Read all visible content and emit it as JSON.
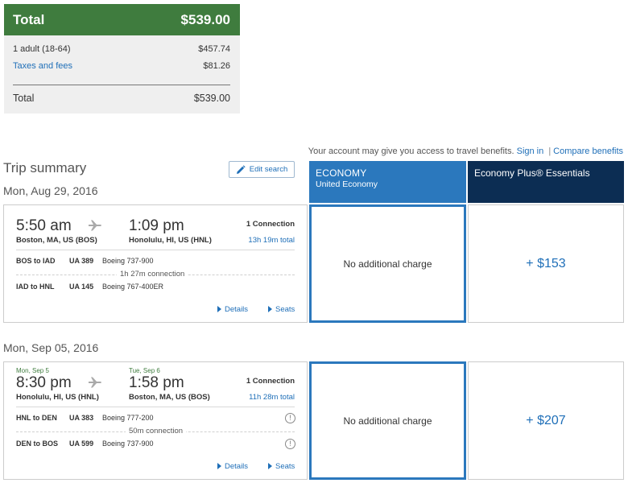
{
  "price_summary": {
    "header_label": "Total",
    "header_amount": "$539.00",
    "rows": [
      {
        "label": "1 adult (18-64)",
        "amount": "$457.74"
      },
      {
        "label": "Taxes and fees",
        "amount": "$81.26"
      }
    ],
    "total_label": "Total",
    "total_amount": "$539.00"
  },
  "benefits_bar": {
    "text": "Your account may give you access to travel benefits.",
    "sign_in": "Sign in",
    "separator": "|",
    "compare": "Compare benefits"
  },
  "trip_summary": {
    "title": "Trip summary",
    "edit_label": "Edit search"
  },
  "columns": {
    "economy_title": "ECONOMY",
    "economy_sub": "United Economy",
    "plus_title": "Economy Plus® Essentials"
  },
  "flights": [
    {
      "date": "Mon, Aug 29, 2016",
      "dep_day": "",
      "arr_day": "",
      "dep_time": "5:50 am",
      "arr_time": "1:09 pm",
      "dep_city": "Boston, MA, US (BOS)",
      "arr_city": "Honolulu, HI, US (HNL)",
      "connections": "1 Connection",
      "total": "13h 19m total",
      "segments": [
        {
          "route": "BOS to IAD",
          "flight": "UA 389",
          "aircraft": "Boeing 737-900"
        },
        {
          "route": "IAD to HNL",
          "flight": "UA 145",
          "aircraft": "Boeing 767-400ER"
        }
      ],
      "layover": "1h 27m connection",
      "details": "Details",
      "seats": "Seats",
      "economy": "No additional charge",
      "plus": "+ $153"
    },
    {
      "date": "Mon, Sep 05, 2016",
      "dep_day": "Mon, Sep 5",
      "arr_day": "Tue, Sep 6",
      "dep_time": "8:30 pm",
      "arr_time": "1:58 pm",
      "dep_city": "Honolulu, HI, US (HNL)",
      "arr_city": "Boston, MA, US (BOS)",
      "connections": "1 Connection",
      "total": "11h 28m total",
      "segments": [
        {
          "route": "HNL to DEN",
          "flight": "UA 383",
          "aircraft": "Boeing 777-200"
        },
        {
          "route": "DEN to BOS",
          "flight": "UA 599",
          "aircraft": "Boeing 737-900"
        }
      ],
      "layover": "50m connection",
      "details": "Details",
      "seats": "Seats",
      "economy": "No additional charge",
      "plus": "+ $207"
    }
  ],
  "colors": {
    "green": "#3f7c3e",
    "economy_blue": "#2b78bd",
    "navy": "#0c2d53",
    "link": "#1f6fb8"
  }
}
